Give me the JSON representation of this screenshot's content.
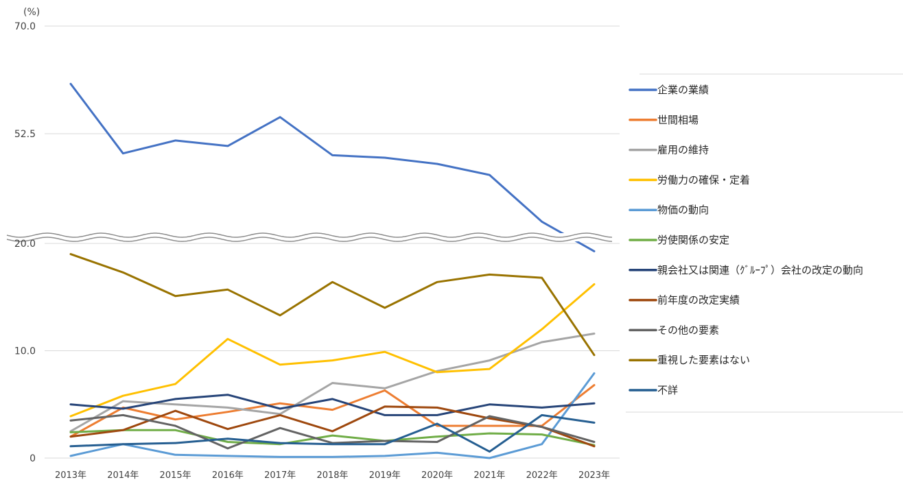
{
  "chart_data": {
    "type": "line",
    "unit_label": "(%)",
    "categories": [
      "2013年",
      "2014年",
      "2015年",
      "2016年",
      "2017年",
      "2018年",
      "2019年",
      "2020年",
      "2021年",
      "2022年",
      "2023年"
    ],
    "upper_ticks": [
      "70.0",
      "52.5"
    ],
    "lower_ticks": [
      "20.0",
      "10.0",
      "0"
    ],
    "upper_range": [
      35,
      70
    ],
    "lower_range": [
      0,
      20
    ],
    "axis_break": true,
    "legend_position": "right",
    "series": [
      {
        "name": "企業の業績",
        "color": "#4472C4",
        "values": [
          60.6,
          49.3,
          51.4,
          50.5,
          55.2,
          49.0,
          48.6,
          47.6,
          45.8,
          38.2,
          33.4
        ]
      },
      {
        "name": "世間相場",
        "color": "#ED7D31",
        "values": [
          2.0,
          4.7,
          3.6,
          4.3,
          5.1,
          4.5,
          6.3,
          3.0,
          3.0,
          3.0,
          6.8
        ]
      },
      {
        "name": "雇用の維持",
        "color": "#A5A5A5",
        "values": [
          2.5,
          5.3,
          5.0,
          4.7,
          4.1,
          7.0,
          6.5,
          8.1,
          9.1,
          10.8,
          11.6
        ]
      },
      {
        "name": "労働力の確保・定着",
        "color": "#FFC000",
        "values": [
          3.9,
          5.8,
          6.9,
          11.1,
          8.7,
          9.1,
          9.9,
          8.0,
          8.3,
          12.0,
          16.2
        ]
      },
      {
        "name": "物価の動向",
        "color": "#5B9BD5",
        "values": [
          0.2,
          1.3,
          0.3,
          0.2,
          0.1,
          0.1,
          0.2,
          0.5,
          0.0,
          1.3,
          7.9
        ]
      },
      {
        "name": "労使関係の安定",
        "color": "#70AD47",
        "values": [
          2.4,
          2.6,
          2.6,
          1.5,
          1.3,
          2.1,
          1.6,
          2.0,
          2.3,
          2.2,
          1.2
        ]
      },
      {
        "name": "親会社又は関連（ｸﾞﾙｰﾌﾟ）会社の改定の動向",
        "color": "#264478",
        "values": [
          5.0,
          4.6,
          5.5,
          5.9,
          4.6,
          5.5,
          4.0,
          4.0,
          5.0,
          4.7,
          5.1
        ]
      },
      {
        "name": "前年度の改定実績",
        "color": "#9E480E",
        "values": [
          2.0,
          2.6,
          4.4,
          2.7,
          4.0,
          2.5,
          4.8,
          4.7,
          3.7,
          2.9,
          1.1
        ]
      },
      {
        "name": "その他の要素",
        "color": "#636363",
        "values": [
          3.5,
          4.0,
          3.0,
          0.9,
          2.8,
          1.4,
          1.6,
          1.5,
          3.9,
          2.9,
          1.5
        ]
      },
      {
        "name": "重視した要素はない",
        "color": "#997300",
        "values": [
          19.0,
          17.3,
          15.1,
          15.7,
          13.3,
          16.4,
          14.0,
          16.4,
          17.1,
          16.8,
          9.6
        ]
      },
      {
        "name": "不詳",
        "color": "#255E91",
        "values": [
          1.1,
          1.3,
          1.4,
          1.8,
          1.4,
          1.3,
          1.3,
          3.2,
          0.6,
          4.0,
          3.3
        ]
      }
    ]
  }
}
